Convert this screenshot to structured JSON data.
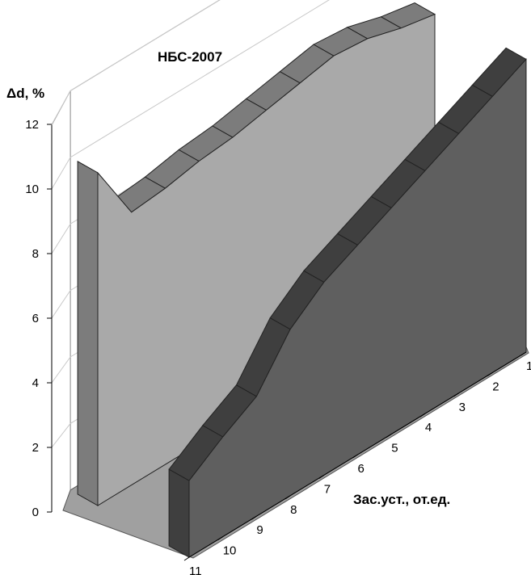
{
  "chart_data": {
    "type": "area",
    "title": "НБС-2007",
    "ylabel": "Δd, %",
    "xlabel": "Зас.уст., от.ед.",
    "ylim": [
      0,
      12
    ],
    "yticks": [
      "0",
      "2",
      "4",
      "6",
      "8",
      "10",
      "12"
    ],
    "categories": [
      "1",
      "2",
      "3",
      "4",
      "5",
      "6",
      "7",
      "8",
      "9",
      "10",
      "11"
    ],
    "grid": true,
    "colors": {
      "back_series": "#a9a9a9",
      "back_series_top": "#7c7c7c",
      "front_series": "#5f5f5f",
      "front_series_top": "#3f3f3f",
      "floor": "#a0a0a0",
      "grid": "#c8c8c8"
    },
    "series": [
      {
        "values": [
          8.6,
          8.8,
          9.1,
          9.2,
          9.0,
          8.8,
          8.6,
          8.5,
          8.3,
          8.2,
          10.0
        ]
      },
      {
        "values": [
          8.8,
          8.3,
          7.8,
          7.3,
          6.8,
          6.3,
          5.8,
          5.0,
          3.6,
          3.0,
          2.3
        ]
      }
    ]
  }
}
